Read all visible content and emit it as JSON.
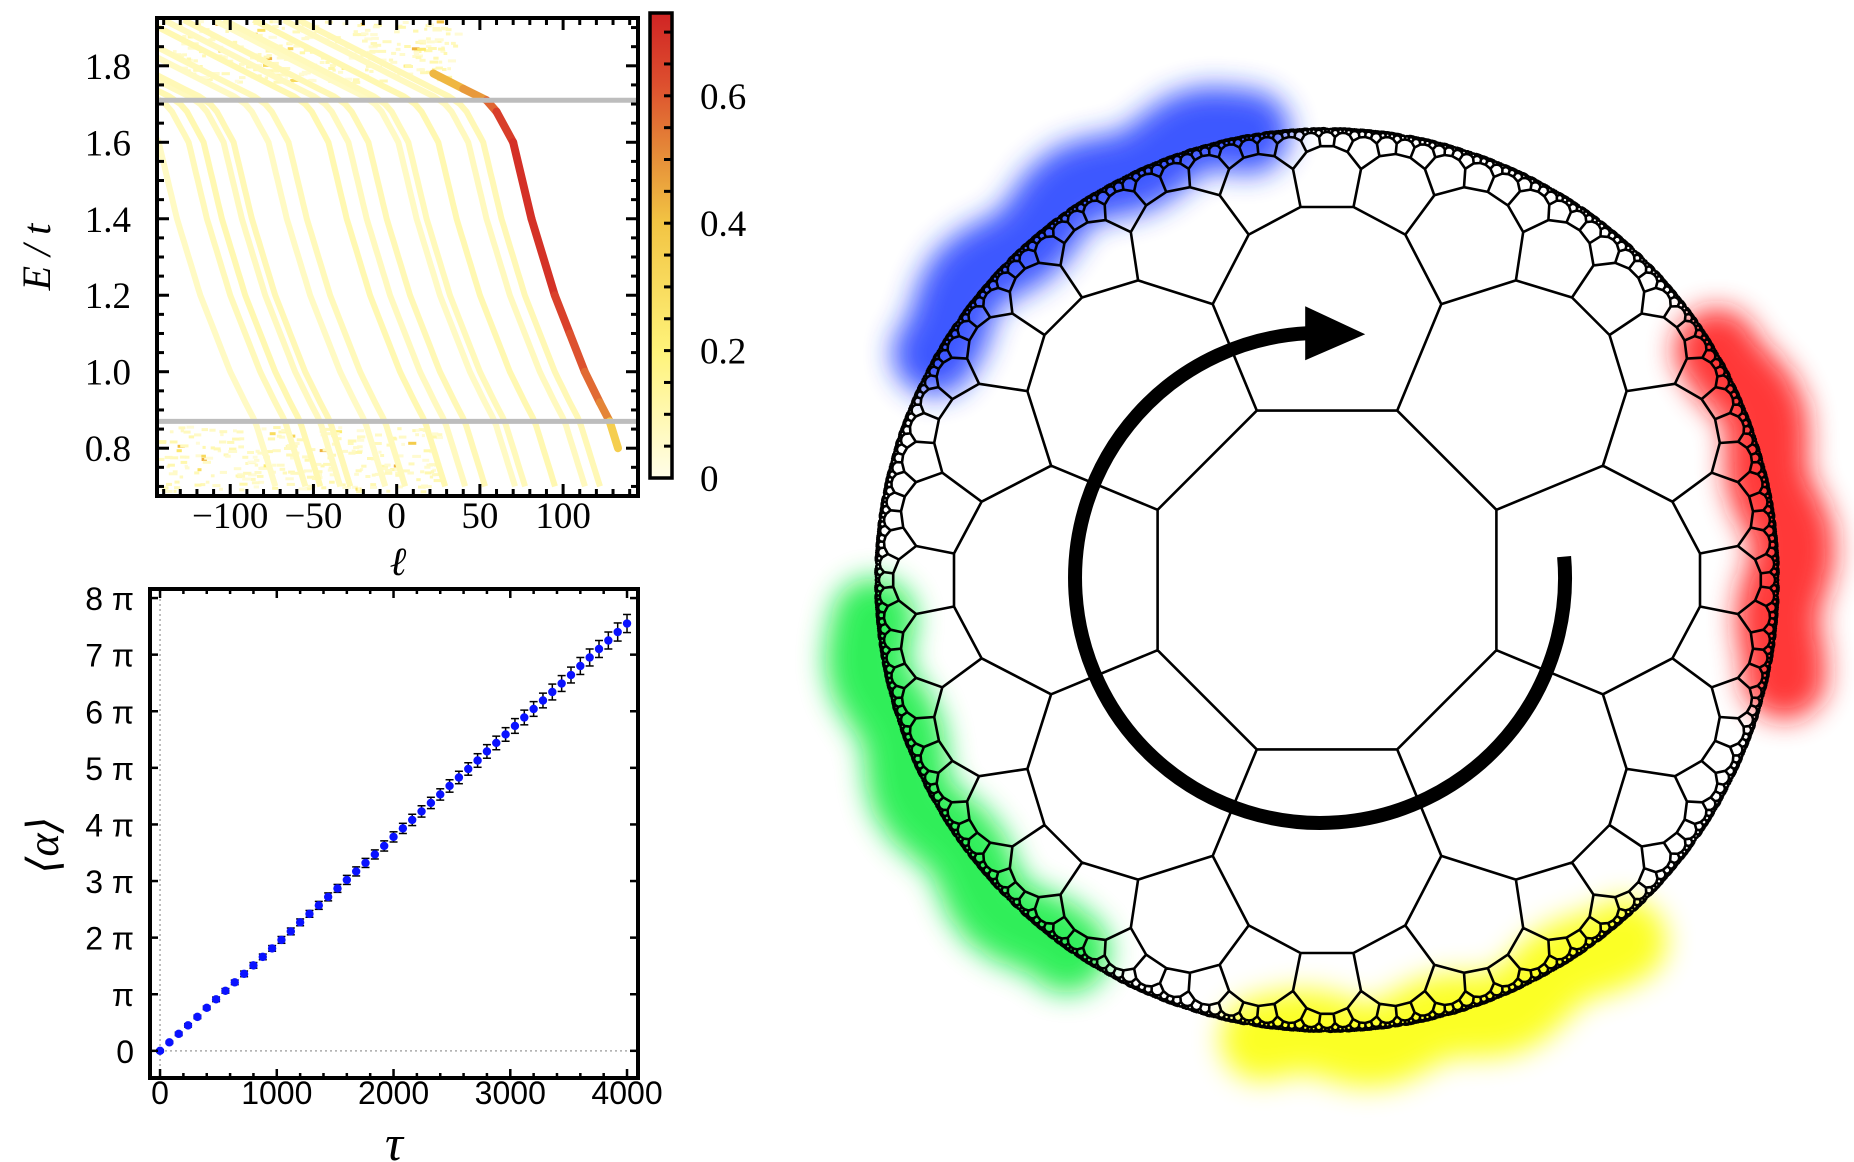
{
  "chart_data": [
    {
      "type": "heatmap",
      "xlabel": "ℓ",
      "ylabel": "E / t",
      "xlim": [
        -144,
        145
      ],
      "ylim": [
        0.675,
        1.925
      ],
      "xticks": [
        -100,
        -50,
        0,
        50,
        100
      ],
      "xticklabels": [
        "−100",
        "−50",
        "0",
        "50",
        "100"
      ],
      "yticks": [
        0.8,
        1.0,
        1.2,
        1.4,
        1.6,
        1.8
      ],
      "yticklabels": [
        "0.8",
        "1.0",
        "1.2",
        "1.4",
        "1.6",
        "1.8"
      ],
      "reference_lines_E": [
        0.87,
        1.71
      ],
      "reference_line_color": "#bdbdbd",
      "colorbar": {
        "range": [
          0,
          0.73
        ],
        "ticks": [
          0,
          0.2,
          0.4,
          0.6
        ],
        "ticklabels": [
          "0",
          "0.2",
          "0.4",
          "0.6"
        ],
        "colormap": [
          "#fffde8",
          "#fff37a",
          "#f2c443",
          "#e58a38",
          "#dd4e2e",
          "#d02424"
        ]
      },
      "dominant_branch": [
        {
          "l": 22,
          "E": 1.78,
          "value": 0.3
        },
        {
          "l": 40,
          "E": 1.74,
          "value": 0.35
        },
        {
          "l": 54,
          "E": 1.71,
          "value": 0.45
        },
        {
          "l": 60,
          "E": 1.68,
          "value": 0.6
        },
        {
          "l": 70,
          "E": 1.6,
          "value": 0.68
        },
        {
          "l": 81,
          "E": 1.4,
          "value": 0.7
        },
        {
          "l": 95,
          "E": 1.2,
          "value": 0.66
        },
        {
          "l": 104,
          "E": 1.1,
          "value": 0.6
        },
        {
          "l": 113,
          "E": 1.0,
          "value": 0.55
        },
        {
          "l": 122,
          "E": 0.92,
          "value": 0.48
        },
        {
          "l": 128,
          "E": 0.87,
          "value": 0.42
        },
        {
          "l": 133,
          "E": 0.8,
          "value": 0.1
        }
      ],
      "faint_branches": {
        "E": 1.3,
        "l": [
          -125,
          -107,
          -98,
          -86,
          -80,
          -59,
          -47,
          -23,
          -11,
          1,
          19,
          25,
          43,
          61,
          70
        ],
        "value": 0.06
      }
    },
    {
      "type": "scatter",
      "xlabel": "τ",
      "ylabel": "⟨α⟩",
      "xlim": [
        -86,
        4094
      ],
      "ylim_in_pi": [
        -0.48,
        8.16
      ],
      "xticks": [
        0,
        1000,
        2000,
        3000,
        4000
      ],
      "xticklabels": [
        "0",
        "1000",
        "2000",
        "3000",
        "4000"
      ],
      "yticks_in_pi": [
        0,
        1,
        2,
        3,
        4,
        5,
        6,
        7,
        8
      ],
      "yticklabels": [
        "0",
        "π",
        "2 π",
        "3 π",
        "4 π",
        "5 π",
        "6 π",
        "7 π",
        "8 π"
      ],
      "point_color": "#0a12ff",
      "errorbar_color": "#000000",
      "reference_lines": {
        "x": 0,
        "y": 0
      },
      "series": [
        {
          "tau": [
            0,
            80,
            160,
            240,
            320,
            400,
            480,
            560,
            640,
            720,
            800,
            880,
            960,
            1040,
            1120,
            1200,
            1280,
            1360,
            1440,
            1520,
            1600,
            1680,
            1760,
            1840,
            1920,
            2000,
            2080,
            2160,
            2240,
            2320,
            2400,
            2480,
            2560,
            2640,
            2720,
            2800,
            2880,
            2960,
            3040,
            3120,
            3200,
            3280,
            3360,
            3440,
            3520,
            3600,
            3680,
            3760,
            3840,
            3920,
            4000
          ],
          "alpha_over_pi": [
            0,
            0.15,
            0.3,
            0.45,
            0.6,
            0.76,
            0.91,
            1.06,
            1.21,
            1.36,
            1.51,
            1.66,
            1.81,
            1.96,
            2.11,
            2.27,
            2.42,
            2.57,
            2.72,
            2.87,
            3.02,
            3.17,
            3.32,
            3.47,
            3.62,
            3.78,
            3.93,
            4.08,
            4.23,
            4.38,
            4.53,
            4.68,
            4.83,
            4.98,
            5.13,
            5.29,
            5.44,
            5.59,
            5.74,
            5.89,
            6.04,
            6.19,
            6.34,
            6.49,
            6.64,
            6.8,
            6.95,
            7.1,
            7.25,
            7.4,
            7.55
          ],
          "error_over_pi": [
            0.02,
            0.02,
            0.03,
            0.03,
            0.03,
            0.03,
            0.04,
            0.04,
            0.04,
            0.05,
            0.05,
            0.05,
            0.05,
            0.06,
            0.06,
            0.06,
            0.06,
            0.07,
            0.07,
            0.07,
            0.08,
            0.08,
            0.08,
            0.08,
            0.09,
            0.09,
            0.09,
            0.1,
            0.1,
            0.1,
            0.1,
            0.11,
            0.11,
            0.11,
            0.12,
            0.12,
            0.12,
            0.12,
            0.13,
            0.13,
            0.13,
            0.13,
            0.14,
            0.14,
            0.14,
            0.15,
            0.15,
            0.15,
            0.15,
            0.16,
            0.16
          ]
        }
      ]
    }
  ],
  "diagram": {
    "edge_color": "#000000",
    "arrow_color": "#000000",
    "blob_colors": {
      "blue": "#1b3bff",
      "red": "#ff1414",
      "green": "#10ec3c",
      "yellow": "#fbff00"
    }
  }
}
